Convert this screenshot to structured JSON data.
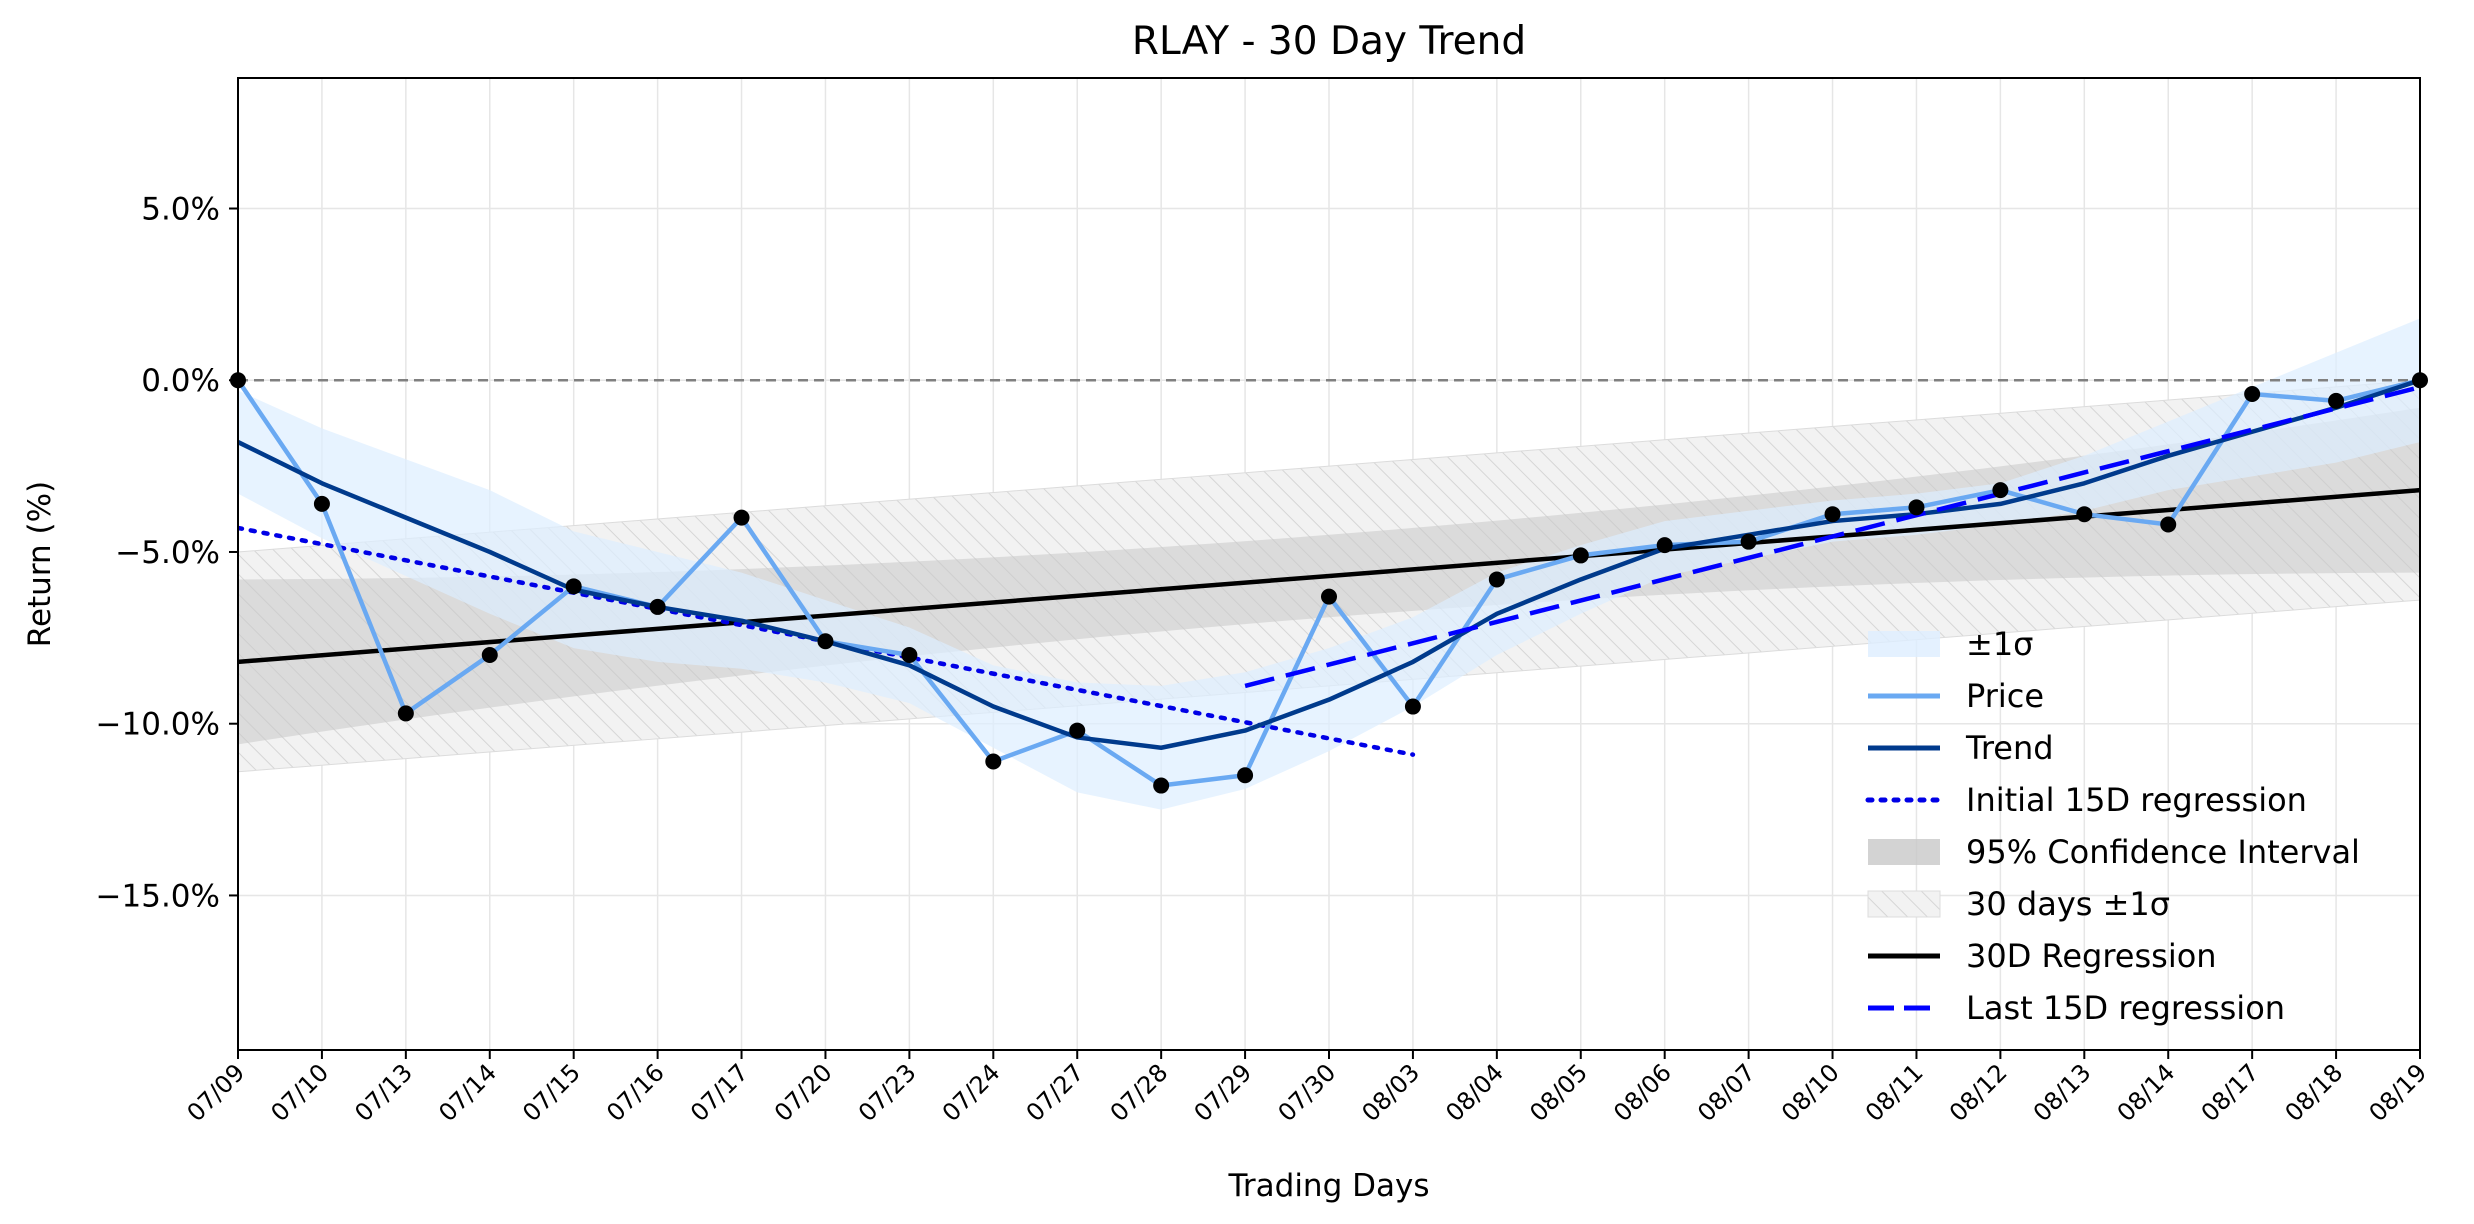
{
  "chart_data": {
    "type": "line",
    "title": "RLAY - 30 Day Trend",
    "xlabel": "Trading Days",
    "ylabel": "Return (%)",
    "ylim": [
      -19.5,
      8.8
    ],
    "yticks": [
      5.0,
      0.0,
      -5.0,
      -10.0,
      -15.0
    ],
    "ytick_labels": [
      "5.0%",
      "0.0%",
      "−5.0%",
      "−10.0%",
      "−15.0%"
    ],
    "grid": true,
    "legend_position": "lower-right",
    "categories": [
      "07/09",
      "07/10",
      "07/13",
      "07/14",
      "07/15",
      "07/16",
      "07/17",
      "07/20",
      "07/23",
      "07/24",
      "07/27",
      "07/28",
      "07/29",
      "07/30",
      "08/03",
      "08/04",
      "08/05",
      "08/06",
      "08/07",
      "08/10",
      "08/11",
      "08/12",
      "08/13",
      "08/14",
      "08/17",
      "08/18",
      "08/19"
    ],
    "series": [
      {
        "name": "Price",
        "color": "#6aa9f2",
        "style": "solid",
        "values": [
          0.0,
          -3.6,
          -9.7,
          -8.0,
          -6.0,
          -6.6,
          -4.0,
          -7.6,
          -8.0,
          -11.1,
          -10.2,
          -11.8,
          -11.5,
          -6.3,
          -9.5,
          -5.8,
          -5.1,
          -4.8,
          -4.7,
          -3.9,
          -3.7,
          -3.2,
          -3.9,
          -4.2,
          -0.4,
          -0.6,
          0.0
        ]
      },
      {
        "name": "Trend",
        "color": "#003a8c",
        "style": "solid",
        "values": [
          -1.8,
          -3.0,
          -4.0,
          -5.0,
          -6.1,
          -6.6,
          -7.0,
          -7.6,
          -8.3,
          -9.5,
          -10.4,
          -10.7,
          -10.2,
          -9.3,
          -8.2,
          -6.8,
          -5.8,
          -4.9,
          -4.5,
          -4.1,
          -3.9,
          -3.6,
          -3.0,
          -2.2,
          -1.5,
          -0.8,
          0.0
        ]
      },
      {
        "name": "Initial 15D regression",
        "color": "#0000e6",
        "style": "dotted",
        "start_index": 0,
        "end_index": 14,
        "y_start": -4.3,
        "y_end": -10.9
      },
      {
        "name": "Last 15D regression",
        "color": "#0000ff",
        "style": "dashed",
        "start_index": 12,
        "end_index": 26,
        "y_start": -8.9,
        "y_end": -0.2
      },
      {
        "name": "30D Regression",
        "color": "#000000",
        "style": "solid",
        "start_index": 0,
        "end_index": 26,
        "y_start": -8.2,
        "y_end": -3.2
      }
    ],
    "bands": [
      {
        "name": "±1σ",
        "color": "#ddeeff",
        "around": "Trend",
        "width": [
          1.5,
          1.6,
          1.7,
          1.8,
          1.7,
          1.6,
          1.4,
          1.2,
          1.1,
          1.2,
          1.6,
          1.8,
          1.7,
          1.5,
          1.3,
          1.2,
          1.0,
          0.8,
          0.7,
          0.6,
          0.6,
          0.6,
          0.8,
          1.0,
          1.3,
          1.6,
          1.8
        ]
      },
      {
        "name": "95% Confidence Interval",
        "color": "#c8c8c8",
        "around": "30D Regression",
        "half_width_start": 2.4,
        "half_width_mid": 1.2,
        "half_width_end": 2.4
      },
      {
        "name": "30 days ±1σ",
        "color": "#eeeeee",
        "hatched": true,
        "around": "30D Regression",
        "half_width": 3.2
      }
    ],
    "baseline": {
      "y": 0.0,
      "style": "dashed",
      "color": "#808080"
    },
    "legend_order": [
      "±1σ",
      "Price",
      "Trend",
      "Initial 15D regression",
      "95% Confidence Interval",
      "30 days ±1σ",
      "30D Regression",
      "Last 15D regression"
    ]
  }
}
